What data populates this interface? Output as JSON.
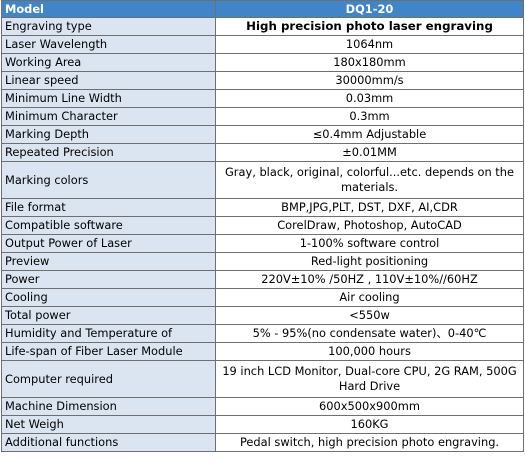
{
  "header": {
    "col1": "Model",
    "col2": "DQ1-20"
  },
  "rows": [
    {
      "label": "Engraving type",
      "value": "High precision photo laser engraving"
    },
    {
      "label": "Laser Wavelength",
      "value": "1064nm"
    },
    {
      "label": "Working Area",
      "value": "180x180mm"
    },
    {
      "label": "Linear speed",
      "value": "30000mm/s"
    },
    {
      "label": "Minimum Line Width",
      "value": "0.03mm"
    },
    {
      "label": "Minimum Character",
      "value": "0.3mm"
    },
    {
      "label": "Marking Depth",
      "value": "≤0.4mm Adjustable"
    },
    {
      "label": "Repeated Precision",
      "value": "±0.01MM"
    },
    {
      "label": "Marking colors",
      "value": "Gray, black, original, colorful...etc. depends on the materials."
    },
    {
      "label": "File format",
      "value": "BMP,JPG,PLT, DST, DXF, AI,CDR"
    },
    {
      "label": "Compatible software",
      "value": "CorelDraw, Photoshop, AutoCAD"
    },
    {
      "label": "Output Power of Laser",
      "value": "1-100% software control"
    },
    {
      "label": "Preview",
      "value": "Red-light positioning"
    },
    {
      "label": "Power",
      "value": "220V±10% /50HZ , 110V±10%//60HZ"
    },
    {
      "label": "Cooling",
      "value": "Air cooling"
    },
    {
      "label": "Total power",
      "value": "<550w"
    },
    {
      "label": "Humidity and Temperature of",
      "value": "5% - 95%(no condensate water)、0-40℃"
    },
    {
      "label": "Life-span of Fiber Laser Module",
      "value": "100,000 hours"
    },
    {
      "label": "Computer required",
      "value": "19 inch LCD Monitor, Dual-core CPU, 2G RAM, 500G Hard Drive"
    },
    {
      "label": "Machine Dimension",
      "value": "600x500x900mm"
    },
    {
      "label": "Net Weigh",
      "value": "160KG"
    },
    {
      "label": "Additional functions",
      "value": "Pedal switch, high precision photo engraving."
    }
  ]
}
